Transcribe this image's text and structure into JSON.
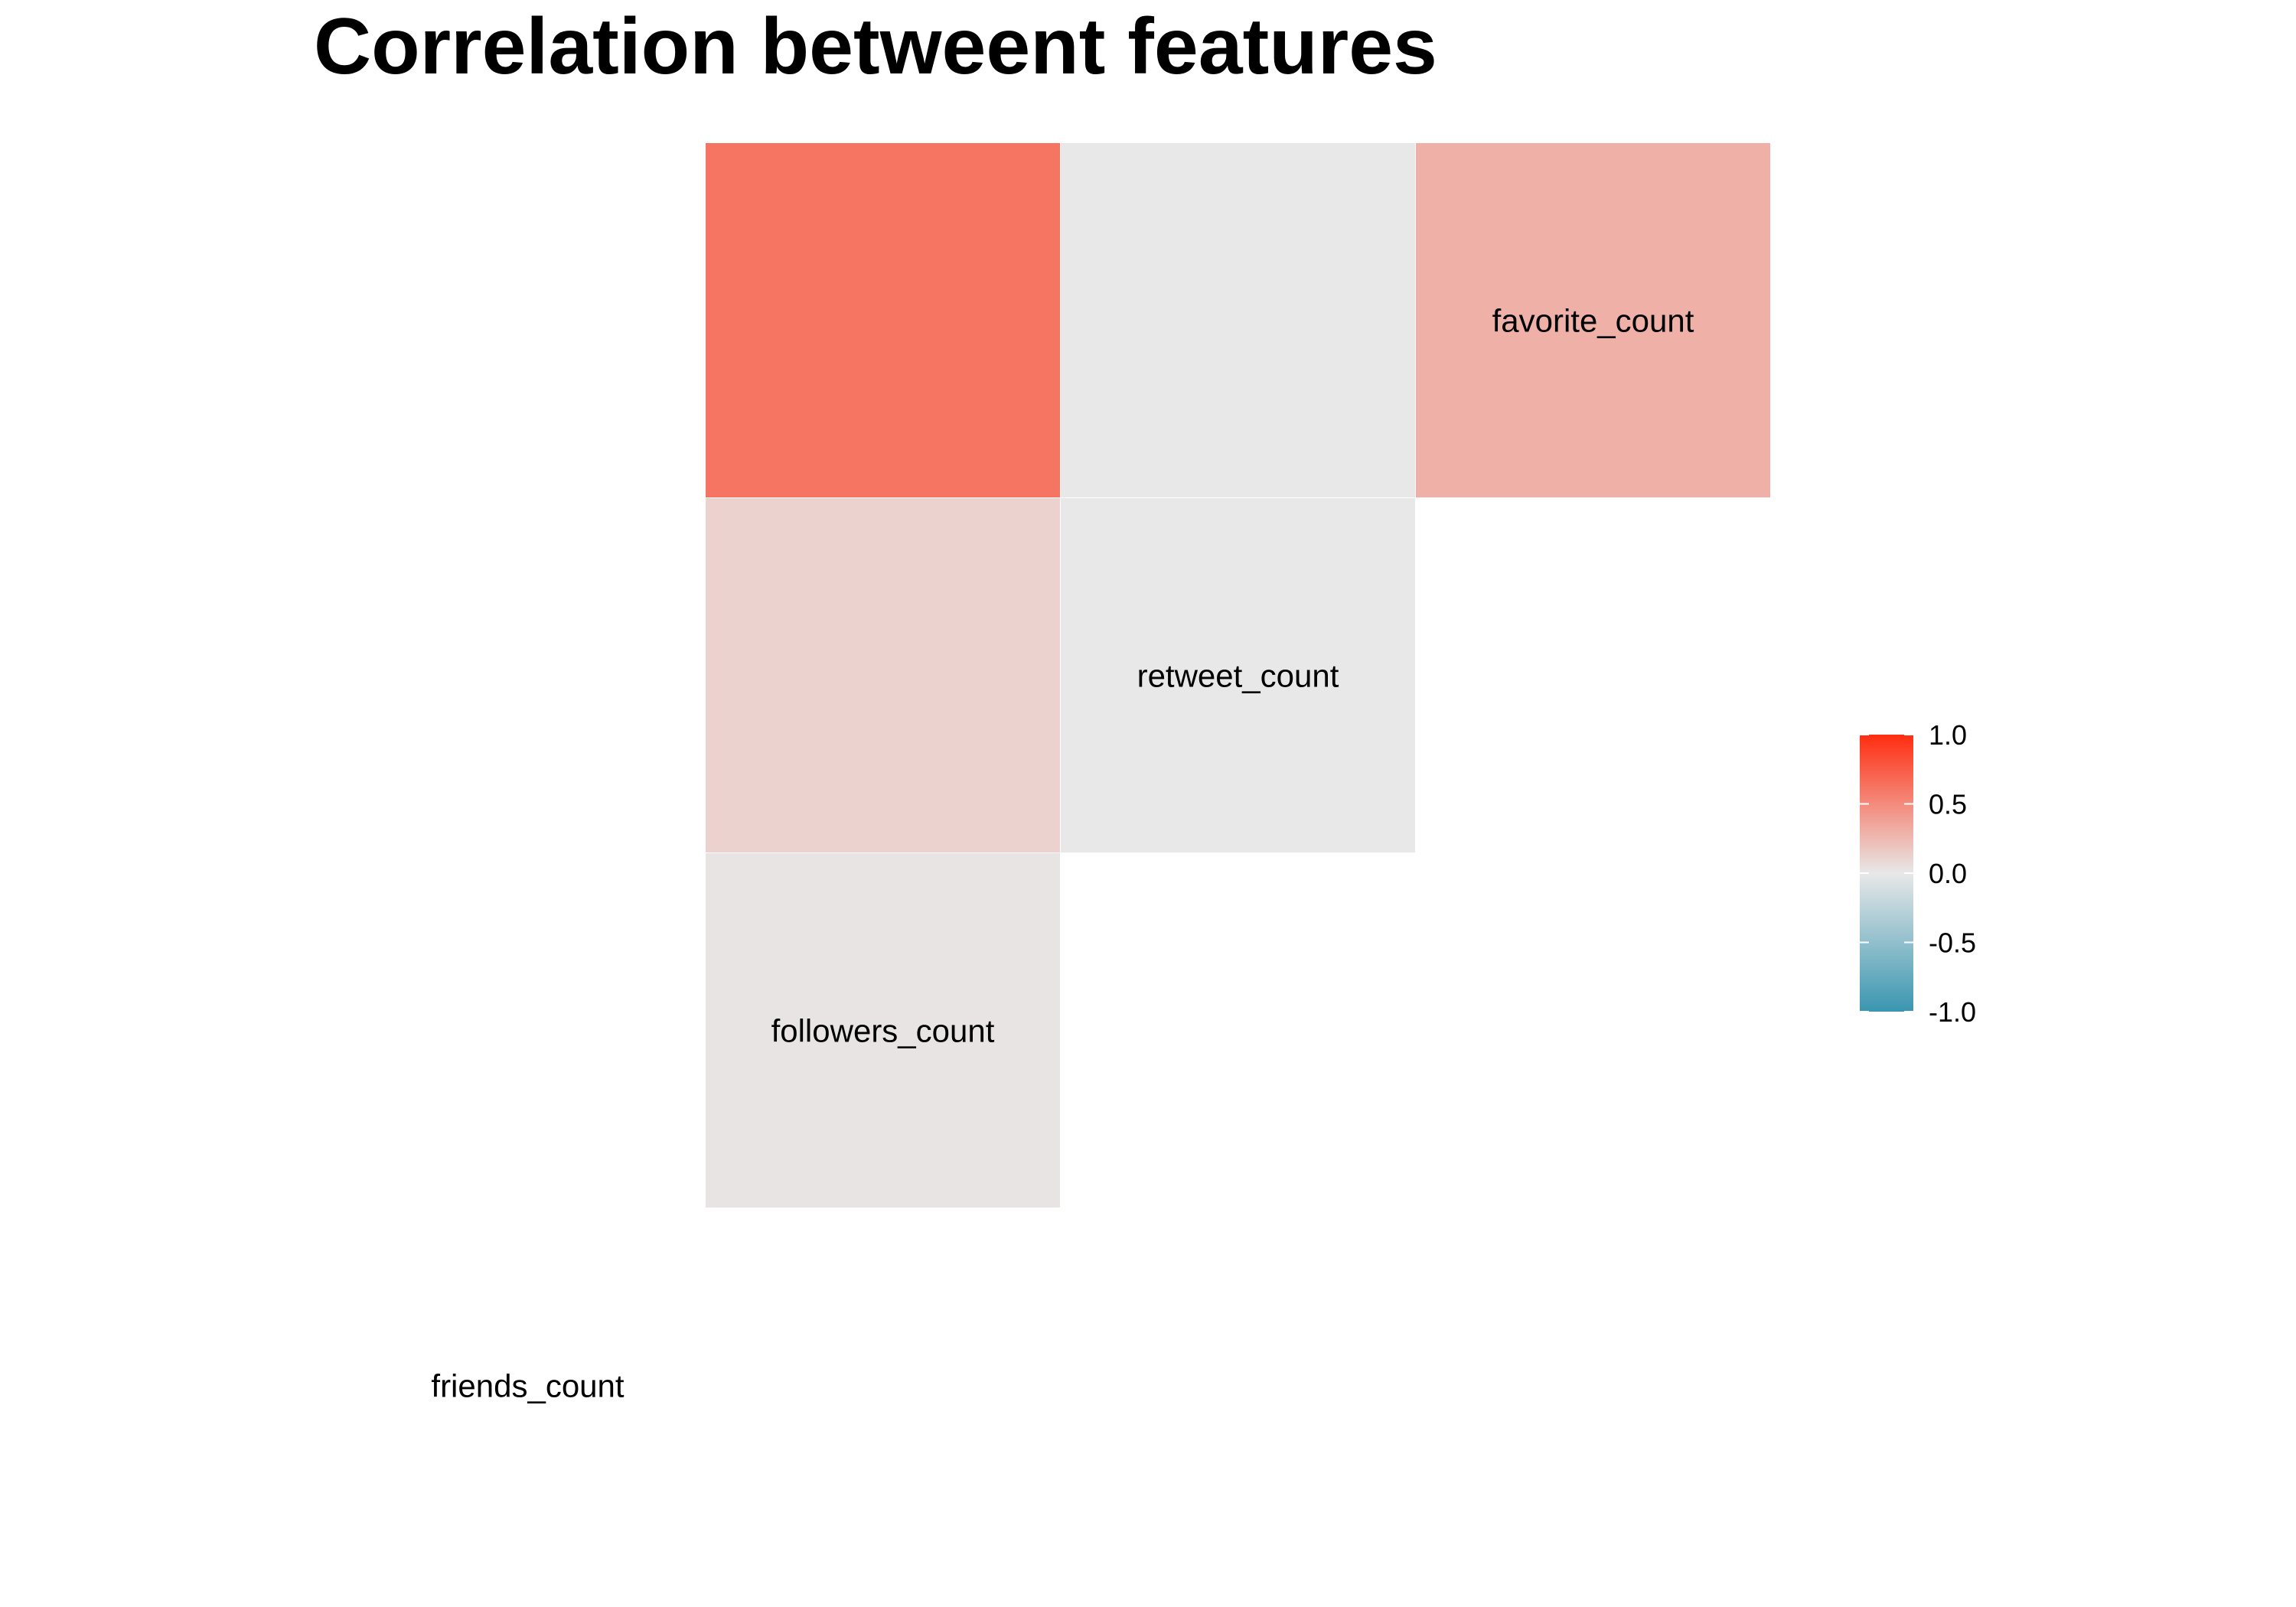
{
  "chart_data": {
    "type": "heatmap",
    "title": "Correlation betweent features",
    "variables": [
      "friends_count",
      "followers_count",
      "retweet_count",
      "favorite_count"
    ],
    "cells": [
      {
        "row": "followers_count",
        "col": "friends_count",
        "value": 0.02
      },
      {
        "row": "retweet_count",
        "col": "friends_count",
        "value": 0.12
      },
      {
        "row": "retweet_count",
        "col": "followers_count",
        "value": 0.0
      },
      {
        "row": "favorite_count",
        "col": "friends_count",
        "value": 0.62
      },
      {
        "row": "favorite_count",
        "col": "followers_count",
        "value": 0.0
      },
      {
        "row": "favorite_count",
        "col": "retweet_count",
        "value": 0.3
      }
    ],
    "color_scale": {
      "low": "#3A96B0",
      "mid": "#E8E8E8",
      "high": "#FF2D10",
      "limits": [
        -1.0,
        1.0
      ]
    },
    "legend": {
      "placement": "right",
      "ticks": [
        "1.0",
        "0.5",
        "0.0",
        "-0.5",
        "-1.0"
      ],
      "tick_values": [
        1.0,
        0.5,
        0.0,
        -0.5,
        -1.0
      ]
    },
    "grid": false
  }
}
